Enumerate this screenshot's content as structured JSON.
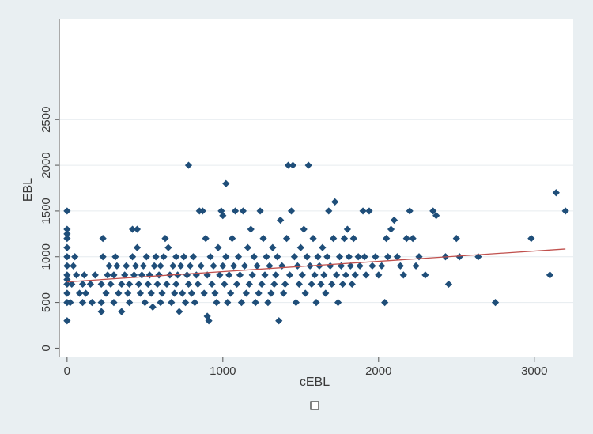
{
  "chart_data": {
    "type": "scatter",
    "title": "",
    "xlabel": "cEBL",
    "ylabel": "EBL",
    "xlim": [
      -50,
      3250
    ],
    "ylim": [
      -100,
      3600
    ],
    "x_ticks": [
      0,
      1000,
      2000,
      3000
    ],
    "y_ticks": [
      0,
      500,
      1000,
      1500,
      2000,
      2500
    ],
    "grid": true,
    "legend": "bottom-center, empty marker box",
    "colors": {
      "plot_bg": "#ffffff",
      "outer_bg": "#e9eff2",
      "marker": "#1f4e79",
      "fit_line": "#c0504d",
      "grid": "#e6ecef",
      "axis": "#555555"
    },
    "fit_line": {
      "x": [
        0,
        3200
      ],
      "y": [
        725,
        1085
      ]
    },
    "series": [
      {
        "points": [
          [
            0,
            300
          ],
          [
            0,
            500
          ],
          [
            0,
            600
          ],
          [
            0,
            700
          ],
          [
            0,
            750
          ],
          [
            0,
            800
          ],
          [
            0,
            900
          ],
          [
            0,
            1000
          ],
          [
            0,
            1100
          ],
          [
            0,
            1200
          ],
          [
            0,
            1250
          ],
          [
            0,
            1300
          ],
          [
            0,
            1500
          ],
          [
            20,
            500
          ],
          [
            30,
            700
          ],
          [
            40,
            900
          ],
          [
            50,
            1000
          ],
          [
            60,
            800
          ],
          [
            80,
            600
          ],
          [
            100,
            500
          ],
          [
            100,
            700
          ],
          [
            110,
            800
          ],
          [
            120,
            600
          ],
          [
            150,
            700
          ],
          [
            160,
            500
          ],
          [
            180,
            800
          ],
          [
            220,
            400
          ],
          [
            220,
            500
          ],
          [
            220,
            700
          ],
          [
            230,
            1000
          ],
          [
            230,
            1200
          ],
          [
            250,
            600
          ],
          [
            260,
            800
          ],
          [
            270,
            900
          ],
          [
            280,
            700
          ],
          [
            300,
            500
          ],
          [
            300,
            800
          ],
          [
            310,
            1000
          ],
          [
            320,
            900
          ],
          [
            330,
            600
          ],
          [
            350,
            700
          ],
          [
            350,
            400
          ],
          [
            370,
            800
          ],
          [
            380,
            900
          ],
          [
            390,
            600
          ],
          [
            400,
            500
          ],
          [
            400,
            700
          ],
          [
            420,
            1000
          ],
          [
            420,
            1300
          ],
          [
            430,
            800
          ],
          [
            440,
            900
          ],
          [
            450,
            1300
          ],
          [
            450,
            1100
          ],
          [
            460,
            700
          ],
          [
            470,
            600
          ],
          [
            480,
            800
          ],
          [
            490,
            900
          ],
          [
            500,
            500
          ],
          [
            510,
            1000
          ],
          [
            520,
            700
          ],
          [
            530,
            800
          ],
          [
            540,
            600
          ],
          [
            550,
            450
          ],
          [
            560,
            900
          ],
          [
            570,
            1000
          ],
          [
            580,
            700
          ],
          [
            590,
            800
          ],
          [
            600,
            500
          ],
          [
            600,
            900
          ],
          [
            610,
            600
          ],
          [
            620,
            1000
          ],
          [
            630,
            1200
          ],
          [
            640,
            700
          ],
          [
            650,
            1100
          ],
          [
            660,
            800
          ],
          [
            670,
            500
          ],
          [
            680,
            900
          ],
          [
            690,
            600
          ],
          [
            700,
            1000
          ],
          [
            700,
            700
          ],
          [
            710,
            800
          ],
          [
            720,
            400
          ],
          [
            730,
            900
          ],
          [
            740,
            600
          ],
          [
            750,
            1000
          ],
          [
            760,
            500
          ],
          [
            770,
            800
          ],
          [
            780,
            2000
          ],
          [
            780,
            700
          ],
          [
            790,
            900
          ],
          [
            800,
            600
          ],
          [
            810,
            1000
          ],
          [
            820,
            500
          ],
          [
            830,
            800
          ],
          [
            840,
            700
          ],
          [
            850,
            1500
          ],
          [
            860,
            900
          ],
          [
            870,
            1500
          ],
          [
            880,
            600
          ],
          [
            890,
            1200
          ],
          [
            900,
            350
          ],
          [
            900,
            800
          ],
          [
            910,
            300
          ],
          [
            920,
            1000
          ],
          [
            930,
            700
          ],
          [
            940,
            900
          ],
          [
            950,
            600
          ],
          [
            960,
            500
          ],
          [
            970,
            1100
          ],
          [
            980,
            800
          ],
          [
            990,
            1500
          ],
          [
            1000,
            1450
          ],
          [
            1000,
            900
          ],
          [
            1010,
            700
          ],
          [
            1020,
            1800
          ],
          [
            1020,
            1000
          ],
          [
            1030,
            500
          ],
          [
            1040,
            800
          ],
          [
            1050,
            600
          ],
          [
            1060,
            1200
          ],
          [
            1070,
            900
          ],
          [
            1080,
            1500
          ],
          [
            1090,
            700
          ],
          [
            1100,
            1000
          ],
          [
            1110,
            800
          ],
          [
            1120,
            500
          ],
          [
            1130,
            1500
          ],
          [
            1140,
            900
          ],
          [
            1150,
            600
          ],
          [
            1160,
            1100
          ],
          [
            1170,
            700
          ],
          [
            1180,
            1300
          ],
          [
            1190,
            800
          ],
          [
            1200,
            1000
          ],
          [
            1210,
            500
          ],
          [
            1220,
            900
          ],
          [
            1230,
            600
          ],
          [
            1240,
            1500
          ],
          [
            1250,
            700
          ],
          [
            1260,
            1200
          ],
          [
            1270,
            800
          ],
          [
            1280,
            1000
          ],
          [
            1290,
            500
          ],
          [
            1300,
            900
          ],
          [
            1310,
            600
          ],
          [
            1320,
            1100
          ],
          [
            1330,
            700
          ],
          [
            1340,
            800
          ],
          [
            1350,
            1000
          ],
          [
            1360,
            300
          ],
          [
            1370,
            1400
          ],
          [
            1380,
            900
          ],
          [
            1390,
            600
          ],
          [
            1400,
            700
          ],
          [
            1410,
            1200
          ],
          [
            1420,
            2000
          ],
          [
            1430,
            800
          ],
          [
            1440,
            1500
          ],
          [
            1450,
            2000
          ],
          [
            1460,
            1000
          ],
          [
            1470,
            500
          ],
          [
            1480,
            900
          ],
          [
            1490,
            700
          ],
          [
            1500,
            1100
          ],
          [
            1510,
            800
          ],
          [
            1520,
            1300
          ],
          [
            1530,
            600
          ],
          [
            1540,
            1000
          ],
          [
            1550,
            2000
          ],
          [
            1560,
            900
          ],
          [
            1570,
            700
          ],
          [
            1580,
            1200
          ],
          [
            1590,
            800
          ],
          [
            1600,
            500
          ],
          [
            1610,
            1000
          ],
          [
            1620,
            900
          ],
          [
            1630,
            700
          ],
          [
            1640,
            1100
          ],
          [
            1650,
            800
          ],
          [
            1660,
            600
          ],
          [
            1670,
            1000
          ],
          [
            1680,
            1500
          ],
          [
            1690,
            900
          ],
          [
            1700,
            700
          ],
          [
            1710,
            1200
          ],
          [
            1720,
            1600
          ],
          [
            1730,
            800
          ],
          [
            1740,
            500
          ],
          [
            1750,
            1000
          ],
          [
            1760,
            900
          ],
          [
            1770,
            700
          ],
          [
            1780,
            1200
          ],
          [
            1790,
            800
          ],
          [
            1800,
            1300
          ],
          [
            1810,
            1000
          ],
          [
            1820,
            900
          ],
          [
            1830,
            700
          ],
          [
            1840,
            1200
          ],
          [
            1850,
            800
          ],
          [
            1870,
            1000
          ],
          [
            1880,
            900
          ],
          [
            1900,
            1500
          ],
          [
            1910,
            1000
          ],
          [
            1920,
            800
          ],
          [
            1940,
            1500
          ],
          [
            1960,
            900
          ],
          [
            1980,
            1000
          ],
          [
            2000,
            800
          ],
          [
            2020,
            900
          ],
          [
            2040,
            500
          ],
          [
            2050,
            1200
          ],
          [
            2060,
            1000
          ],
          [
            2080,
            1300
          ],
          [
            2100,
            1400
          ],
          [
            2120,
            1000
          ],
          [
            2140,
            900
          ],
          [
            2160,
            800
          ],
          [
            2180,
            1200
          ],
          [
            2200,
            1500
          ],
          [
            2220,
            1200
          ],
          [
            2240,
            900
          ],
          [
            2260,
            1000
          ],
          [
            2300,
            800
          ],
          [
            2350,
            1500
          ],
          [
            2370,
            1450
          ],
          [
            2430,
            1000
          ],
          [
            2450,
            700
          ],
          [
            2500,
            1200
          ],
          [
            2520,
            1000
          ],
          [
            2640,
            1000
          ],
          [
            2750,
            500
          ],
          [
            2980,
            1200
          ],
          [
            3100,
            800
          ],
          [
            3140,
            1700
          ],
          [
            3200,
            1500
          ]
        ]
      }
    ]
  }
}
